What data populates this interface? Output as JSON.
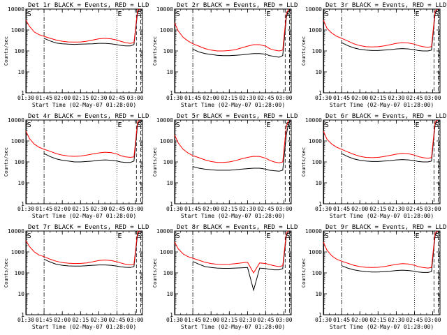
{
  "chart_data": {
    "type": "line",
    "layout": "3x3 grid",
    "shared": {
      "xlabel": "Start Time (02-May-07 01:28:00)",
      "ylabel": "Counts/sec",
      "x_unit": "minutes since 01:28:00",
      "xlim": [
        2,
        98
      ],
      "x_ticks": [
        {
          "v": 2,
          "label": "01:30"
        },
        {
          "v": 17,
          "label": "01:45"
        },
        {
          "v": 32,
          "label": "02:00"
        },
        {
          "v": 47,
          "label": "02:15"
        },
        {
          "v": 62,
          "label": "02:30"
        },
        {
          "v": 77,
          "label": "02:45"
        },
        {
          "v": 92,
          "label": "03:00"
        }
      ],
      "y_scale": "log",
      "ylim": [
        1,
        10000
      ],
      "y_ticks": [
        {
          "v": 1,
          "label": "1"
        },
        {
          "v": 10,
          "label": "10"
        },
        {
          "v": 100,
          "label": "100"
        },
        {
          "v": 1000,
          "label": "1000"
        },
        {
          "v": 10000,
          "label": "10000"
        }
      ],
      "series_legend": [
        {
          "name": "Events",
          "color": "#000000"
        },
        {
          "name": "LLD",
          "color": "#ff0000"
        }
      ],
      "markers": [
        {
          "label": "S",
          "x": 2.4,
          "style": "solid"
        },
        {
          "label": "",
          "x": 17,
          "style": "dashdot"
        },
        {
          "label": "E",
          "x": 77,
          "style": "dotted"
        },
        {
          "label": "S",
          "x": 93,
          "style": "dashed"
        },
        {
          "label": "",
          "x": 96.5,
          "style": "dashed"
        }
      ]
    },
    "panels": [
      {
        "title": "Det 1r BLACK = Events, RED = LLD",
        "x": [
          2,
          5,
          9,
          13,
          17,
          22,
          27,
          32,
          37,
          42,
          47,
          52,
          57,
          62,
          67,
          72,
          77,
          80,
          84,
          88,
          91,
          94,
          96
        ],
        "red": [
          3000,
          1500,
          800,
          600,
          500,
          400,
          330,
          290,
          270,
          265,
          270,
          290,
          330,
          380,
          400,
          380,
          330,
          290,
          250,
          230,
          250,
          9000,
          12000
        ],
        "black": [
          null,
          null,
          null,
          null,
          400,
          300,
          240,
          220,
          210,
          205,
          210,
          215,
          220,
          230,
          230,
          220,
          200,
          185,
          175,
          175,
          200,
          7000,
          11000
        ]
      },
      {
        "title": "Det 2r BLACK = Events, RED = LLD",
        "x": [
          2,
          5,
          9,
          13,
          17,
          22,
          27,
          32,
          37,
          42,
          47,
          52,
          57,
          62,
          67,
          72,
          77,
          80,
          84,
          88,
          91,
          94,
          96
        ],
        "red": [
          2200,
          900,
          450,
          300,
          220,
          170,
          130,
          110,
          100,
          100,
          105,
          115,
          140,
          170,
          200,
          200,
          170,
          130,
          110,
          100,
          110,
          6000,
          12000
        ],
        "black": [
          null,
          null,
          null,
          null,
          120,
          90,
          75,
          68,
          62,
          60,
          60,
          62,
          65,
          70,
          75,
          75,
          70,
          60,
          55,
          50,
          60,
          4000,
          10000
        ]
      },
      {
        "title": "Det 3r BLACK = Events, RED = LLD",
        "x": [
          2,
          5,
          9,
          13,
          17,
          22,
          27,
          32,
          37,
          42,
          47,
          52,
          57,
          62,
          67,
          72,
          77,
          80,
          84,
          88,
          91,
          94,
          96
        ],
        "red": [
          3000,
          1200,
          700,
          500,
          400,
          300,
          220,
          180,
          160,
          155,
          160,
          175,
          200,
          230,
          250,
          240,
          210,
          180,
          160,
          150,
          160,
          8000,
          12000
        ],
        "black": [
          null,
          null,
          null,
          null,
          250,
          180,
          140,
          120,
          110,
          105,
          105,
          110,
          115,
          125,
          130,
          125,
          115,
          105,
          100,
          100,
          110,
          6000,
          11000
        ]
      },
      {
        "title": "Det 4r BLACK = Events, RED = LLD",
        "x": [
          2,
          5,
          9,
          13,
          17,
          22,
          27,
          32,
          37,
          42,
          47,
          52,
          57,
          62,
          67,
          72,
          77,
          80,
          84,
          88,
          91,
          94,
          96
        ],
        "red": [
          3000,
          1300,
          700,
          500,
          400,
          320,
          250,
          210,
          190,
          185,
          190,
          210,
          240,
          270,
          290,
          280,
          240,
          200,
          175,
          165,
          175,
          8000,
          12000
        ],
        "black": [
          null,
          null,
          null,
          null,
          250,
          180,
          140,
          120,
          110,
          100,
          100,
          105,
          110,
          120,
          125,
          120,
          110,
          100,
          95,
          95,
          110,
          6000,
          11000
        ]
      },
      {
        "title": "Det 5r BLACK = Events, RED = LLD",
        "x": [
          2,
          5,
          9,
          13,
          17,
          22,
          27,
          32,
          37,
          42,
          47,
          52,
          57,
          62,
          67,
          72,
          77,
          80,
          84,
          88,
          91,
          94,
          96
        ],
        "red": [
          2000,
          800,
          400,
          270,
          200,
          160,
          125,
          105,
          95,
          95,
          100,
          115,
          140,
          165,
          185,
          180,
          150,
          120,
          100,
          90,
          100,
          5000,
          10000
        ],
        "black": [
          null,
          null,
          null,
          null,
          60,
          50,
          45,
          42,
          40,
          40,
          40,
          42,
          45,
          48,
          50,
          50,
          45,
          40,
          38,
          36,
          40,
          2000,
          8000
        ]
      },
      {
        "title": "Det 6r BLACK = Events, RED = LLD",
        "x": [
          2,
          5,
          9,
          13,
          17,
          22,
          27,
          32,
          37,
          42,
          47,
          52,
          57,
          62,
          67,
          72,
          77,
          80,
          84,
          88,
          91,
          94,
          96
        ],
        "red": [
          3000,
          1200,
          700,
          500,
          400,
          300,
          230,
          185,
          165,
          160,
          165,
          180,
          205,
          235,
          255,
          245,
          210,
          180,
          160,
          150,
          160,
          8000,
          12000
        ],
        "black": [
          null,
          null,
          null,
          null,
          250,
          180,
          140,
          120,
          110,
          105,
          105,
          110,
          115,
          125,
          130,
          125,
          115,
          105,
          100,
          100,
          110,
          6000,
          11000
        ]
      },
      {
        "title": "Det 7r BLACK = Events, RED = LLD",
        "x": [
          2,
          5,
          9,
          13,
          17,
          22,
          27,
          32,
          37,
          42,
          47,
          52,
          57,
          62,
          67,
          72,
          77,
          80,
          84,
          88,
          91,
          94,
          96
        ],
        "red": [
          3500,
          1800,
          1000,
          700,
          600,
          450,
          360,
          310,
          290,
          280,
          285,
          300,
          340,
          390,
          410,
          390,
          340,
          300,
          260,
          240,
          260,
          9000,
          12000
        ],
        "black": [
          null,
          null,
          null,
          null,
          450,
          330,
          260,
          230,
          215,
          210,
          210,
          220,
          230,
          240,
          240,
          230,
          210,
          195,
          185,
          180,
          200,
          7000,
          11000
        ]
      },
      {
        "title": "Det 8r BLACK = Events, RED = LLD",
        "x": [
          2,
          5,
          9,
          13,
          17,
          22,
          27,
          32,
          37,
          42,
          47,
          52,
          57,
          62,
          67,
          72,
          77,
          80,
          84,
          88,
          91,
          94,
          96
        ],
        "red": [
          3000,
          1400,
          800,
          600,
          500,
          400,
          320,
          280,
          260,
          255,
          260,
          275,
          300,
          320,
          100,
          300,
          280,
          250,
          220,
          200,
          220,
          8000,
          12000
        ],
        "black": [
          null,
          null,
          null,
          null,
          350,
          260,
          200,
          180,
          170,
          165,
          165,
          170,
          175,
          180,
          15,
          170,
          160,
          150,
          140,
          140,
          160,
          6000,
          11000
        ]
      },
      {
        "title": "Det 9r BLACK = Events, RED = LLD",
        "x": [
          2,
          5,
          9,
          13,
          17,
          22,
          27,
          32,
          37,
          42,
          47,
          52,
          57,
          62,
          67,
          72,
          77,
          80,
          84,
          88,
          91,
          94,
          96
        ],
        "red": [
          3000,
          1200,
          650,
          450,
          360,
          290,
          230,
          200,
          185,
          180,
          185,
          200,
          225,
          255,
          275,
          265,
          230,
          200,
          180,
          170,
          180,
          8000,
          12000
        ],
        "black": [
          null,
          null,
          null,
          null,
          220,
          170,
          140,
          125,
          115,
          110,
          110,
          115,
          120,
          130,
          135,
          130,
          120,
          110,
          105,
          105,
          115,
          6000,
          11000
        ]
      }
    ]
  }
}
